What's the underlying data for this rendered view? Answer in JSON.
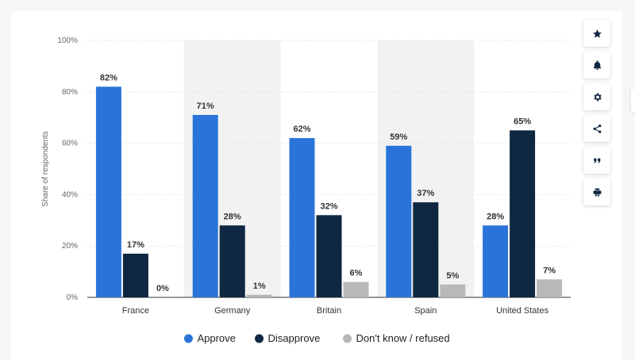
{
  "chart_data": {
    "type": "bar",
    "categories": [
      "France",
      "Germany",
      "Britain",
      "Spain",
      "United States"
    ],
    "series": [
      {
        "name": "Approve",
        "values": [
          82,
          71,
          62,
          59,
          28
        ],
        "color": "#2a74d9"
      },
      {
        "name": "Disapprove",
        "values": [
          17,
          28,
          32,
          37,
          65
        ],
        "color": "#0f2741"
      },
      {
        "name": "Don't know / refused",
        "values": [
          0,
          1,
          6,
          5,
          7
        ],
        "color": "#b8b8b8"
      }
    ],
    "ylabel": "Share of respondents",
    "ylim": [
      0,
      100
    ],
    "yticks": [
      "0%",
      "20%",
      "40%",
      "60%",
      "80%",
      "100%"
    ],
    "value_suffix": "%",
    "grid": true,
    "legend_placement": "bottom-center",
    "shaded_categories": [
      "Germany",
      "Spain"
    ],
    "shade_color": "#f2f2f2"
  },
  "toolbar": {
    "buttons": [
      {
        "name": "star-icon"
      },
      {
        "name": "bell-icon"
      },
      {
        "name": "gear-icon"
      },
      {
        "name": "share-icon"
      },
      {
        "name": "quote-icon"
      },
      {
        "name": "print-icon"
      }
    ]
  }
}
